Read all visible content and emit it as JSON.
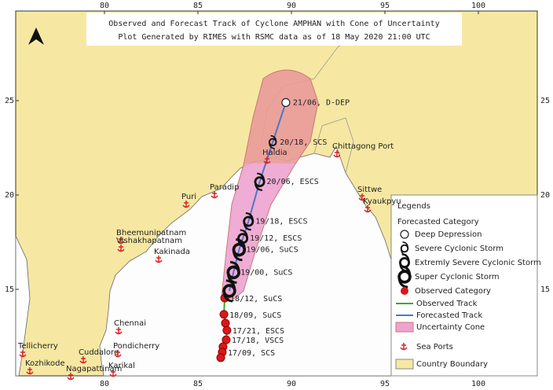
{
  "title": "Observed and Forecast Track of Cyclone AMPHAN with Cone of Uncertainty",
  "subtitle": "Plot Generated by RIMES with RSMC data as of 18 May 2020 21:00 UTC",
  "lon_ticks": [
    80,
    85,
    90,
    95,
    100
  ],
  "lat_ticks": [
    15,
    20,
    25
  ],
  "forecast_track": [
    {
      "lon": 86.68,
      "lat": 14.92,
      "category": "Super Cyclonic Storm"
    },
    {
      "label": "19/00, SuCS",
      "lon": 86.9,
      "lat": 15.9,
      "category": "Super Cyclonic Storm"
    },
    {
      "label": "19/06, SuCS",
      "lon": 87.2,
      "lat": 17.1,
      "category": "Super Cyclonic Storm"
    },
    {
      "label": "19/12, ESCS",
      "lon": 87.4,
      "lat": 17.7,
      "category": "Extremly Severe Cyclonic Storm"
    },
    {
      "label": "19/18, ESCS",
      "lon": 87.7,
      "lat": 18.6,
      "category": "Extremly Severe Cyclonic Storm"
    },
    {
      "label": "20/06, ESCS",
      "lon": 88.3,
      "lat": 20.7,
      "category": "Extremly Severe Cyclonic Storm"
    },
    {
      "label": "20/18, SCS",
      "lon": 89.0,
      "lat": 22.8,
      "category": "Severe Cyclonic Storm"
    },
    {
      "label": "21/06, D-DEP",
      "lon": 89.7,
      "lat": 24.9,
      "category": "Deep Depression"
    }
  ],
  "observed_track": [
    {
      "label": "18/12, SuCS",
      "lon": 86.43,
      "lat": 14.54
    },
    {
      "label": "18/09, SuCS",
      "lon": 86.39,
      "lat": 13.67
    },
    {
      "lon": 86.47,
      "lat": 13.21
    },
    {
      "label": "17/21, ESCS",
      "lon": 86.55,
      "lat": 12.83
    },
    {
      "label": "17/18, VSCS",
      "lon": 86.51,
      "lat": 12.33
    },
    {
      "lon": 86.34,
      "lat": 11.96
    },
    {
      "label": "17/09, SCS",
      "lon": 86.3,
      "lat": 11.67
    },
    {
      "lon": 86.22,
      "lat": 11.38
    }
  ],
  "places": [
    "Haldia",
    "Chittagong Port",
    "Paradip",
    "Puri",
    "Sittwe",
    "Kyaukpyu",
    "Bheemunipatnam",
    "Vishakhapatnam",
    "Kakinada",
    "Chennai",
    "Pondicherry",
    "Cuddalore",
    "Karikal",
    "Nagapattinam",
    "Tellicherry",
    "Kozhikode"
  ],
  "legend": {
    "title": "Legends",
    "forecast_heading": "Forecasted Category",
    "categories": [
      "Deep Depression",
      "Severe Cyclonic Storm",
      "Extremly Severe Cyclonic Storm",
      "Super Cyclonic Storm"
    ],
    "observed": "Observed Category",
    "observed_track": "Observed Track",
    "forecast_track": "Forecasted Track",
    "cone": "Uncertainty Cone",
    "ports": "Sea Ports",
    "boundary": "Country Boundary"
  }
}
